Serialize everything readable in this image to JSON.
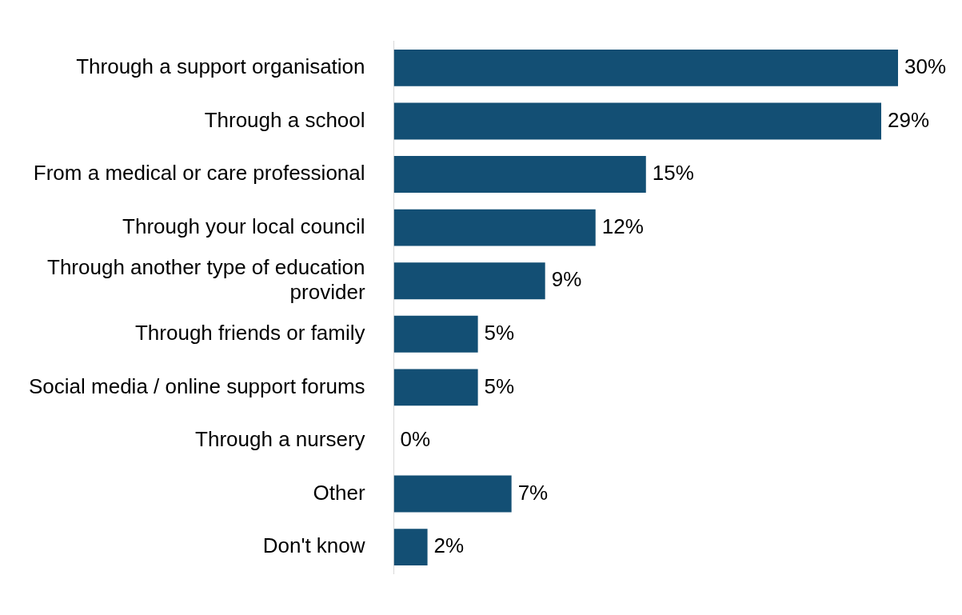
{
  "chart_data": {
    "type": "bar",
    "orientation": "horizontal",
    "categories": [
      "Through a support organisation",
      "Through a school",
      "From a medical or care professional",
      "Through your local council",
      "Through another type of education provider",
      "Through friends or family",
      "Social media / online support forums",
      "Through a nursery",
      "Other",
      "Don't know"
    ],
    "values": [
      30,
      29,
      15,
      12,
      9,
      5,
      5,
      0,
      7,
      2
    ],
    "value_labels": [
      "30%",
      "29%",
      "15%",
      "12%",
      "9%",
      "5%",
      "5%",
      "0%",
      "7%",
      "2%"
    ],
    "color": "#134f74",
    "legend": false
  }
}
